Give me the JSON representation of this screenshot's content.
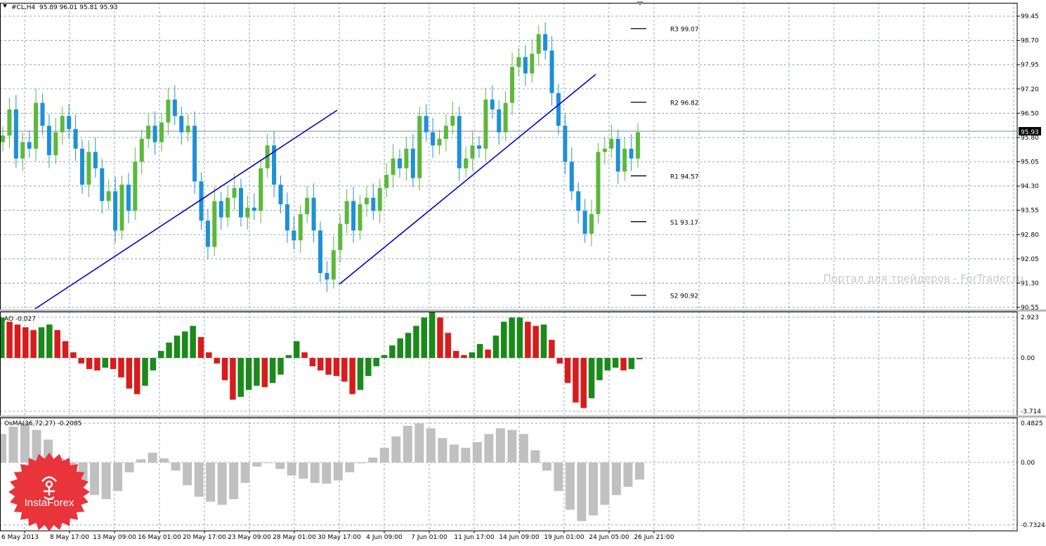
{
  "header": {
    "symbol": "#CL,H4",
    "ohlc": "95.89 96.01 95.81 95.93",
    "current_price": "95.93"
  },
  "price_axis_labels": [
    "99.45",
    "98.70",
    "97.95",
    "97.20",
    "96.50",
    "95.80",
    "95.05",
    "94.30",
    "93.55",
    "92.80",
    "92.05",
    "91.30",
    "90.55"
  ],
  "pivot_levels": [
    {
      "label": "R3",
      "value": "99.07"
    },
    {
      "label": "R2",
      "value": "96.82"
    },
    {
      "label": "R1",
      "value": "94.57"
    },
    {
      "label": "S1",
      "value": "93.17"
    },
    {
      "label": "S2",
      "value": "90.92"
    }
  ],
  "ao_panel": {
    "title": "AO -0.027",
    "axis_labels": [
      "2.923",
      "0.00",
      "-3.714"
    ]
  },
  "osma_panel": {
    "title": "OsMA(36,72,27) -0.2085",
    "axis_labels": [
      "0.4825",
      "0.00",
      "-0.7324"
    ]
  },
  "time_axis_labels": [
    "6 May 2013",
    "8 May 17:00",
    "13 May 09:00",
    "16 May 01:00",
    "20 May 17:00",
    "23 May 09:00",
    "28 May 01:00",
    "30 May 17:00",
    "4 Jun 09:00",
    "7 Jun 01:00",
    "11 Jun 17:00",
    "14 Jun 09:00",
    "19 Jun 01:00",
    "24 Jun 05:00",
    "26 Jun 21:00"
  ],
  "watermark": "Портал для трейдеров - ForTrader.ru",
  "badge": {
    "brand": "InstaForex"
  },
  "colors": {
    "bull_candle": "#5cb83c",
    "bear_candle": "#1e90d6",
    "trendline": "#0000cc",
    "ao_up": "#1a8a1a",
    "ao_down": "#d81c1c",
    "osma": "#c0c0c0",
    "grid": "#7f8fa6",
    "badge": "#e8343a"
  },
  "chart_data": {
    "type": "candlestick",
    "y_range": [
      90.55,
      99.45
    ],
    "closes": [
      95.8,
      96.6,
      95.1,
      95.6,
      95.4,
      96.8,
      96.1,
      95.2,
      95.9,
      96.4,
      96.0,
      95.4,
      94.3,
      95.3,
      94.8,
      93.8,
      94.1,
      92.9,
      94.3,
      93.5,
      95.0,
      95.7,
      96.1,
      95.6,
      96.2,
      96.9,
      96.4,
      95.9,
      96.1,
      94.4,
      93.2,
      92.4,
      93.8,
      93.3,
      93.9,
      94.2,
      93.3,
      93.6,
      93.5,
      94.8,
      95.5,
      94.3,
      93.7,
      92.9,
      92.6,
      93.4,
      93.9,
      92.9,
      91.6,
      91.4,
      92.3,
      93.1,
      93.8,
      92.9,
      93.7,
      93.9,
      93.5,
      94.2,
      94.6,
      95.1,
      94.8,
      95.4,
      94.5,
      96.4,
      95.9,
      95.5,
      95.7,
      96.1,
      96.4,
      94.8,
      95.1,
      95.5,
      95.4,
      96.9,
      96.6,
      95.9,
      96.8,
      97.9,
      98.2,
      97.7,
      98.3,
      98.9,
      98.4,
      97.1,
      96.1,
      95.0,
      94.1,
      93.5,
      92.8,
      93.4,
      95.3,
      95.4,
      95.7,
      94.7,
      95.4,
      95.1,
      95.9
    ],
    "ao_values": [
      2.9,
      2.6,
      2.4,
      2.2,
      2.0,
      2.2,
      2.4,
      2.0,
      1.2,
      0.4,
      -0.4,
      -0.8,
      -0.9,
      -0.7,
      -0.8,
      -1.4,
      -2.2,
      -2.6,
      -2.0,
      -0.9,
      0.5,
      1.1,
      1.6,
      1.9,
      2.3,
      1.5,
      0.4,
      -0.4,
      -1.6,
      -3.0,
      -2.8,
      -2.3,
      -2.0,
      -2.1,
      -1.8,
      -1.2,
      0.2,
      1.2,
      0.4,
      -0.6,
      -0.9,
      -1.2,
      -1.3,
      -1.7,
      -2.6,
      -2.3,
      -1.3,
      -0.6,
      0.2,
      0.9,
      1.4,
      1.8,
      2.3,
      2.9,
      3.3,
      2.9,
      1.8,
      0.5,
      0.2,
      0.4,
      1.0,
      0.6,
      1.6,
      2.6,
      2.9,
      2.9,
      2.6,
      2.3,
      2.4,
      1.3,
      -0.4,
      -1.8,
      -3.2,
      -3.6,
      -2.9,
      -1.6,
      -0.9,
      -0.7,
      -0.9,
      -0.8,
      -0.1
    ],
    "osma_values": [
      0.35,
      0.44,
      0.48,
      0.4,
      0.28,
      0.05,
      -0.12,
      -0.25,
      -0.4,
      -0.45,
      -0.35,
      -0.12,
      0.04,
      0.12,
      0.05,
      -0.1,
      -0.28,
      -0.42,
      -0.48,
      -0.52,
      -0.45,
      -0.25,
      -0.05,
      0.0,
      -0.08,
      -0.16,
      -0.2,
      -0.25,
      -0.26,
      -0.22,
      -0.12,
      -0.01,
      0.06,
      0.18,
      0.32,
      0.45,
      0.48,
      0.42,
      0.3,
      0.22,
      0.18,
      0.25,
      0.35,
      0.42,
      0.4,
      0.35,
      0.15,
      -0.1,
      -0.35,
      -0.58,
      -0.72,
      -0.65,
      -0.52,
      -0.4,
      -0.3,
      -0.21
    ]
  }
}
